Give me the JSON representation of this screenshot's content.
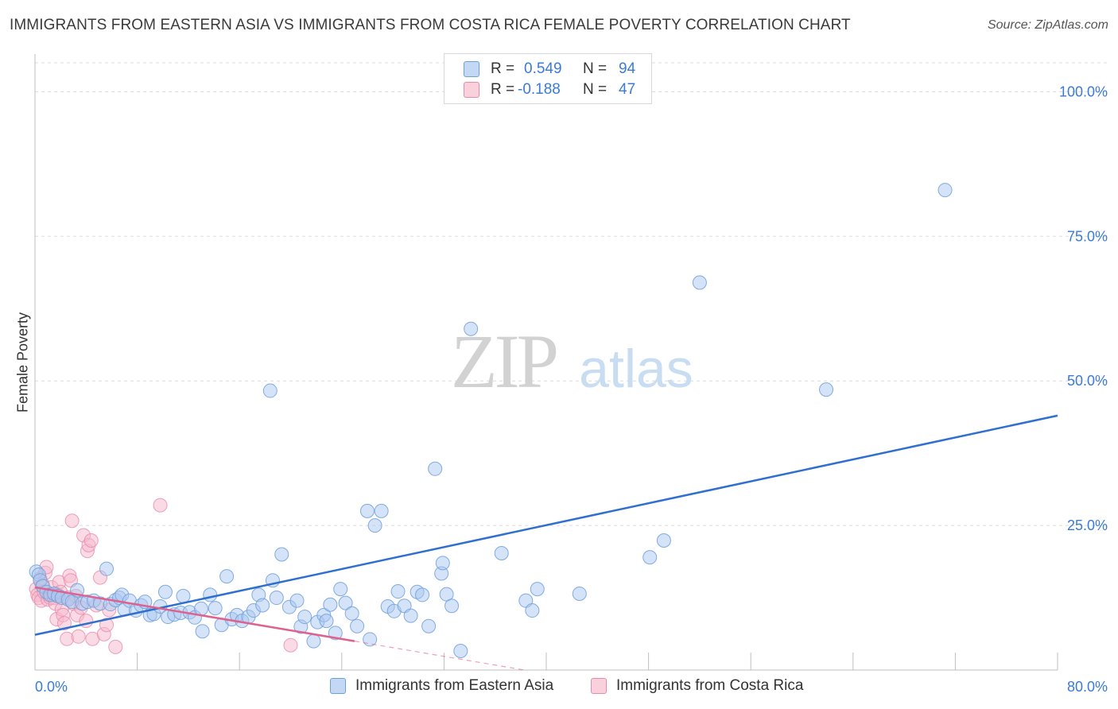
{
  "header": {
    "title": "IMMIGRANTS FROM EASTERN ASIA VS IMMIGRANTS FROM COSTA RICA FEMALE POVERTY CORRELATION CHART",
    "source": "Source: ZipAtlas.com"
  },
  "watermark": {
    "zip": "ZIP",
    "atlas": "atlas"
  },
  "legend": {
    "r_label": "R =",
    "n_label": "N =",
    "series1": {
      "r": "0.549",
      "n": "94"
    },
    "series2": {
      "r": "-0.188",
      "n": "47"
    }
  },
  "colors": {
    "blue_fill": "#a9c8f0",
    "blue_stroke": "#6d9fdc",
    "blue_line": "#2f6fd0",
    "pink_fill": "#f6b8cb",
    "pink_stroke": "#e88aa8",
    "pink_line": "#e0608e",
    "tick_label": "#3a7bd5",
    "grid": "#dcdcdc"
  },
  "chart_data": {
    "type": "scatter",
    "title": "IMMIGRANTS FROM EASTERN ASIA VS IMMIGRANTS FROM COSTA RICA FEMALE POVERTY CORRELATION CHART",
    "xlabel": "",
    "ylabel": "Female Poverty",
    "xlim": [
      0,
      80
    ],
    "ylim": [
      0,
      105
    ],
    "x_tick_labels": [
      "0.0%",
      "80.0%"
    ],
    "y_ticks": [
      25,
      50,
      75,
      100
    ],
    "y_tick_labels": [
      "25.0%",
      "50.0%",
      "75.0%",
      "100.0%"
    ],
    "grid": true,
    "legend_position": "top-center",
    "series": [
      {
        "name": "Immigrants from Eastern Asia",
        "color": "#a9c8f0",
        "r": 0.549,
        "n": 94,
        "trend": {
          "x": [
            0,
            80
          ],
          "y": [
            6.1,
            44.0
          ],
          "style": "solid"
        },
        "points": [
          [
            0.1,
            17.0
          ],
          [
            0.3,
            16.5
          ],
          [
            0.4,
            15.5
          ],
          [
            0.6,
            14.5
          ],
          [
            0.9,
            13.5
          ],
          [
            1.2,
            13.0
          ],
          [
            1.5,
            13.2
          ],
          [
            1.8,
            12.8
          ],
          [
            2.1,
            12.5
          ],
          [
            2.6,
            12.2
          ],
          [
            2.9,
            11.8
          ],
          [
            3.3,
            13.8
          ],
          [
            3.7,
            11.5
          ],
          [
            4.1,
            11.8
          ],
          [
            4.6,
            12.0
          ],
          [
            5.1,
            11.5
          ],
          [
            5.6,
            17.5
          ],
          [
            5.9,
            11.4
          ],
          [
            6.3,
            12.1
          ],
          [
            6.6,
            12.5
          ],
          [
            6.8,
            13.0
          ],
          [
            7.0,
            10.5
          ],
          [
            7.4,
            12.0
          ],
          [
            7.9,
            10.3
          ],
          [
            8.3,
            11.2
          ],
          [
            8.6,
            11.8
          ],
          [
            9.0,
            9.5
          ],
          [
            9.3,
            9.7
          ],
          [
            9.8,
            11.0
          ],
          [
            10.2,
            13.5
          ],
          [
            10.4,
            9.2
          ],
          [
            10.9,
            9.6
          ],
          [
            11.4,
            9.9
          ],
          [
            11.6,
            12.8
          ],
          [
            12.1,
            10.0
          ],
          [
            12.5,
            9.1
          ],
          [
            13.0,
            10.6
          ],
          [
            13.1,
            6.7
          ],
          [
            13.7,
            13.0
          ],
          [
            14.1,
            10.7
          ],
          [
            14.6,
            7.8
          ],
          [
            15.0,
            16.2
          ],
          [
            15.4,
            8.8
          ],
          [
            15.8,
            9.5
          ],
          [
            16.2,
            8.5
          ],
          [
            16.7,
            9.2
          ],
          [
            17.1,
            10.3
          ],
          [
            17.5,
            13.0
          ],
          [
            17.8,
            11.2
          ],
          [
            18.4,
            48.3
          ],
          [
            18.6,
            15.5
          ],
          [
            18.9,
            12.5
          ],
          [
            19.3,
            20.0
          ],
          [
            19.9,
            10.9
          ],
          [
            20.5,
            12.0
          ],
          [
            20.8,
            7.5
          ],
          [
            21.1,
            9.2
          ],
          [
            21.8,
            5.0
          ],
          [
            22.1,
            8.3
          ],
          [
            22.6,
            9.5
          ],
          [
            22.8,
            8.5
          ],
          [
            23.1,
            11.3
          ],
          [
            23.5,
            6.4
          ],
          [
            23.9,
            14.0
          ],
          [
            24.3,
            11.6
          ],
          [
            24.8,
            9.8
          ],
          [
            25.2,
            7.6
          ],
          [
            26.2,
            5.3
          ],
          [
            26.0,
            27.5
          ],
          [
            26.6,
            25.0
          ],
          [
            27.1,
            27.5
          ],
          [
            27.6,
            11.0
          ],
          [
            28.1,
            10.2
          ],
          [
            28.4,
            13.6
          ],
          [
            28.9,
            11.1
          ],
          [
            29.4,
            9.4
          ],
          [
            29.9,
            13.5
          ],
          [
            30.3,
            13.0
          ],
          [
            30.8,
            7.6
          ],
          [
            31.3,
            34.8
          ],
          [
            31.8,
            16.7
          ],
          [
            31.9,
            18.5
          ],
          [
            32.2,
            13.1
          ],
          [
            32.6,
            11.1
          ],
          [
            33.3,
            3.3
          ],
          [
            34.1,
            59.0
          ],
          [
            36.5,
            20.2
          ],
          [
            38.4,
            12.0
          ],
          [
            38.9,
            10.3
          ],
          [
            39.3,
            14.0
          ],
          [
            42.6,
            13.2
          ],
          [
            48.1,
            19.5
          ],
          [
            49.2,
            22.4
          ],
          [
            52.0,
            67.0
          ],
          [
            61.9,
            48.5
          ],
          [
            71.2,
            83.0
          ]
        ]
      },
      {
        "name": "Immigrants from Costa Rica",
        "color": "#f6b8cb",
        "r": -0.188,
        "n": 47,
        "trend": {
          "x": [
            0,
            25.0
          ],
          "y": [
            14.3,
            5.0
          ],
          "style": "solid",
          "dashed_extension": {
            "x": [
              25.0,
              38.3
            ],
            "y": [
              5.0,
              0.0
            ]
          }
        },
        "points": [
          [
            0.1,
            14.0
          ],
          [
            0.2,
            13.0
          ],
          [
            0.3,
            12.5
          ],
          [
            0.4,
            15.8
          ],
          [
            0.5,
            12.0
          ],
          [
            0.6,
            14.8
          ],
          [
            0.7,
            13.5
          ],
          [
            0.8,
            16.8
          ],
          [
            0.9,
            17.8
          ],
          [
            1.0,
            12.2
          ],
          [
            1.1,
            13.0
          ],
          [
            1.2,
            12.5
          ],
          [
            1.3,
            14.3
          ],
          [
            1.4,
            13.0
          ],
          [
            1.5,
            12.5
          ],
          [
            1.6,
            11.5
          ],
          [
            1.7,
            8.8
          ],
          [
            1.8,
            13.0
          ],
          [
            1.9,
            15.2
          ],
          [
            2.0,
            13.5
          ],
          [
            2.1,
            10.5
          ],
          [
            2.2,
            9.5
          ],
          [
            2.3,
            8.1
          ],
          [
            2.5,
            5.4
          ],
          [
            2.6,
            12.5
          ],
          [
            2.7,
            16.3
          ],
          [
            2.8,
            15.5
          ],
          [
            2.9,
            25.8
          ],
          [
            3.0,
            11.5
          ],
          [
            3.2,
            12.8
          ],
          [
            3.3,
            9.5
          ],
          [
            3.4,
            5.8
          ],
          [
            3.6,
            10.8
          ],
          [
            3.8,
            23.3
          ],
          [
            4.0,
            8.5
          ],
          [
            4.1,
            20.6
          ],
          [
            4.2,
            21.6
          ],
          [
            4.4,
            22.4
          ],
          [
            4.5,
            5.4
          ],
          [
            4.8,
            11.2
          ],
          [
            5.1,
            16.0
          ],
          [
            5.4,
            6.2
          ],
          [
            5.6,
            7.8
          ],
          [
            5.8,
            10.4
          ],
          [
            6.3,
            4.0
          ],
          [
            9.8,
            28.5
          ],
          [
            20.0,
            4.3
          ]
        ]
      }
    ]
  },
  "bottom_legend": {
    "series1_label": "Immigrants from Eastern Asia",
    "series2_label": "Immigrants from Costa Rica"
  }
}
